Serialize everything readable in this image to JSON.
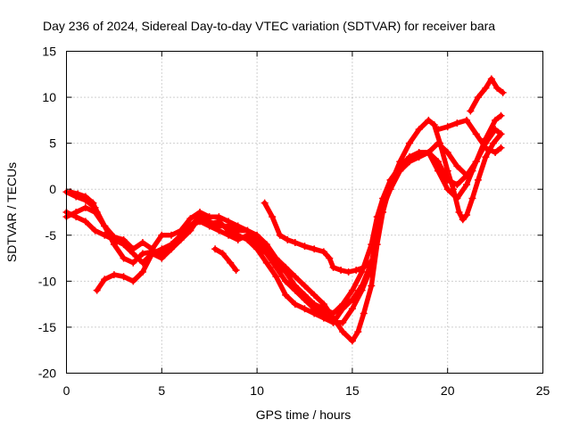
{
  "chart_data": {
    "type": "scatter",
    "title": "Day 236 of 2024, Sidereal Day-to-day VTEC variation (SDTVAR) for receiver bara",
    "xlabel": "GPS time / hours",
    "ylabel": "SDTVAR / TECUs",
    "xlim": [
      0,
      25
    ],
    "ylim": [
      -20,
      15
    ],
    "xticks": [
      0,
      5,
      10,
      15,
      20,
      25
    ],
    "yticks": [
      -20,
      -15,
      -10,
      -5,
      0,
      5,
      10,
      15
    ],
    "xtick_labels": [
      "0",
      "5",
      "10",
      "15",
      "20",
      "25"
    ],
    "ytick_labels": [
      "-20",
      "-15",
      "-10",
      "-5",
      "0",
      "5",
      "10",
      "15"
    ],
    "grid": true,
    "marker": "plus",
    "color": "#ff0000",
    "series": [
      {
        "name": "track-1",
        "points": [
          [
            0.0,
            -0.3
          ],
          [
            0.5,
            -0.8
          ],
          [
            1.0,
            -1.2
          ],
          [
            1.5,
            -2.0
          ],
          [
            2.0,
            -4.0
          ],
          [
            2.5,
            -5.2
          ],
          [
            3.0,
            -5.5
          ],
          [
            3.5,
            -6.5
          ],
          [
            4.0,
            -5.8
          ],
          [
            4.5,
            -6.5
          ],
          [
            5.0,
            -5.0
          ],
          [
            5.5,
            -5.0
          ],
          [
            6.0,
            -4.5
          ],
          [
            6.5,
            -3.2
          ],
          [
            7.0,
            -2.5
          ],
          [
            7.5,
            -3.0
          ],
          [
            8.0,
            -3.0
          ],
          [
            8.5,
            -3.5
          ],
          [
            9.0,
            -4.0
          ],
          [
            9.5,
            -4.5
          ],
          [
            10.0,
            -5.0
          ],
          [
            10.5,
            -6.0
          ],
          [
            11.0,
            -7.5
          ],
          [
            11.5,
            -8.5
          ],
          [
            12.0,
            -9.5
          ],
          [
            12.5,
            -10.5
          ],
          [
            13.0,
            -11.5
          ],
          [
            13.5,
            -12.5
          ],
          [
            14.0,
            -14.0
          ],
          [
            14.5,
            -15.5
          ],
          [
            15.0,
            -16.5
          ],
          [
            15.3,
            -15.5
          ],
          [
            15.6,
            -13.5
          ],
          [
            16.0,
            -10.5
          ],
          [
            16.3,
            -6.0
          ],
          [
            16.6,
            -2.5
          ],
          [
            17.0,
            0.5
          ],
          [
            17.5,
            3.0
          ],
          [
            18.0,
            5.0
          ],
          [
            18.5,
            6.5
          ],
          [
            19.0,
            7.5
          ],
          [
            19.3,
            7.0
          ],
          [
            19.6,
            5.0
          ],
          [
            20.0,
            2.0
          ],
          [
            20.3,
            0.0
          ],
          [
            20.6,
            -2.5
          ],
          [
            20.8,
            -3.3
          ],
          [
            21.0,
            -2.8
          ],
          [
            21.3,
            -1.0
          ],
          [
            21.6,
            1.0
          ],
          [
            22.0,
            3.5
          ],
          [
            22.4,
            5.0
          ],
          [
            22.8,
            6.0
          ]
        ]
      },
      {
        "name": "track-2",
        "points": [
          [
            0.0,
            -2.5
          ],
          [
            0.5,
            -3.0
          ],
          [
            1.0,
            -3.5
          ],
          [
            1.5,
            -4.5
          ],
          [
            2.0,
            -5.0
          ],
          [
            2.5,
            -5.5
          ],
          [
            3.0,
            -6.0
          ],
          [
            3.5,
            -7.0
          ],
          [
            4.0,
            -8.0
          ],
          [
            4.5,
            -7.0
          ],
          [
            5.0,
            -6.5
          ],
          [
            5.5,
            -6.0
          ],
          [
            6.0,
            -5.0
          ],
          [
            6.5,
            -4.0
          ],
          [
            7.0,
            -3.5
          ],
          [
            7.5,
            -4.0
          ],
          [
            8.0,
            -4.5
          ],
          [
            8.5,
            -5.0
          ],
          [
            9.0,
            -5.5
          ],
          [
            9.5,
            -5.0
          ],
          [
            10.0,
            -6.0
          ],
          [
            10.5,
            -7.0
          ],
          [
            11.0,
            -8.5
          ],
          [
            11.5,
            -10.0
          ],
          [
            12.0,
            -11.0
          ],
          [
            12.5,
            -12.0
          ],
          [
            13.0,
            -13.0
          ],
          [
            13.5,
            -13.5
          ],
          [
            14.0,
            -14.5
          ],
          [
            14.5,
            -14.5
          ],
          [
            15.0,
            -13.0
          ],
          [
            15.5,
            -11.0
          ],
          [
            16.0,
            -8.5
          ],
          [
            16.3,
            -4.5
          ],
          [
            16.6,
            -1.5
          ],
          [
            17.0,
            1.0
          ],
          [
            17.5,
            2.5
          ],
          [
            18.0,
            3.5
          ],
          [
            18.5,
            4.0
          ],
          [
            19.0,
            4.0
          ],
          [
            19.5,
            2.0
          ],
          [
            20.0,
            0.0
          ],
          [
            20.5,
            -1.0
          ],
          [
            21.0,
            0.5
          ],
          [
            21.5,
            3.0
          ],
          [
            22.0,
            5.5
          ],
          [
            22.5,
            7.5
          ],
          [
            22.8,
            8.0
          ]
        ]
      },
      {
        "name": "track-3",
        "points": [
          [
            0.0,
            -3.0
          ],
          [
            0.5,
            -2.5
          ],
          [
            1.0,
            -2.0
          ],
          [
            1.5,
            -2.5
          ],
          [
            2.0,
            -4.0
          ],
          [
            2.5,
            -6.0
          ],
          [
            3.0,
            -7.5
          ],
          [
            3.5,
            -8.0
          ],
          [
            4.0,
            -7.0
          ],
          [
            4.5,
            -6.8
          ],
          [
            5.0,
            -7.0
          ],
          [
            5.5,
            -6.5
          ],
          [
            6.0,
            -5.5
          ],
          [
            6.5,
            -4.5
          ],
          [
            7.0,
            -3.0
          ],
          [
            7.5,
            -3.5
          ],
          [
            8.0,
            -4.0
          ],
          [
            8.5,
            -4.0
          ],
          [
            9.0,
            -4.5
          ],
          [
            9.5,
            -4.5
          ],
          [
            10.0,
            -5.5
          ],
          [
            10.5,
            -6.5
          ],
          [
            11.0,
            -8.0
          ],
          [
            11.5,
            -9.0
          ],
          [
            12.0,
            -10.5
          ],
          [
            12.5,
            -11.5
          ],
          [
            13.0,
            -12.5
          ],
          [
            13.5,
            -13.0
          ],
          [
            14.0,
            -13.5
          ],
          [
            14.5,
            -12.5
          ],
          [
            15.0,
            -11.0
          ],
          [
            15.5,
            -9.0
          ],
          [
            16.0,
            -6.0
          ],
          [
            16.3,
            -3.0
          ],
          [
            16.6,
            -1.0
          ],
          [
            17.0,
            1.0
          ],
          [
            17.5,
            2.0
          ],
          [
            18.0,
            3.0
          ],
          [
            18.5,
            3.5
          ],
          [
            19.0,
            4.0
          ],
          [
            19.5,
            5.0
          ],
          [
            20.0,
            4.0
          ],
          [
            20.5,
            2.5
          ],
          [
            21.0,
            1.5
          ],
          [
            21.5,
            3.0
          ],
          [
            22.0,
            5.0
          ],
          [
            22.5,
            6.5
          ],
          [
            22.8,
            6.0
          ]
        ]
      },
      {
        "name": "track-4",
        "points": [
          [
            1.6,
            -11.0
          ],
          [
            2.0,
            -9.8
          ],
          [
            2.5,
            -9.3
          ],
          [
            3.0,
            -9.5
          ],
          [
            3.5,
            -10.0
          ],
          [
            4.0,
            -9.0
          ],
          [
            4.5,
            -7.0
          ],
          [
            5.0,
            -7.5
          ],
          [
            5.5,
            -6.5
          ],
          [
            6.0,
            -5.0
          ],
          [
            6.5,
            -4.0
          ],
          [
            7.0,
            -3.0
          ],
          [
            7.5,
            -3.8
          ],
          [
            8.0,
            -3.5
          ],
          [
            8.5,
            -4.5
          ],
          [
            9.0,
            -5.0
          ],
          [
            9.5,
            -5.5
          ],
          [
            10.0,
            -6.5
          ],
          [
            10.5,
            -8.0
          ],
          [
            11.0,
            -9.5
          ],
          [
            11.5,
            -11.5
          ],
          [
            12.0,
            -12.5
          ],
          [
            12.5,
            -13.0
          ],
          [
            13.0,
            -13.5
          ],
          [
            13.5,
            -14.0
          ],
          [
            14.0,
            -14.5
          ],
          [
            14.5,
            -13.0
          ],
          [
            15.0,
            -12.0
          ],
          [
            15.5,
            -10.5
          ],
          [
            16.0,
            -8.0
          ],
          [
            16.3,
            -5.0
          ],
          [
            16.6,
            -2.0
          ],
          [
            17.0,
            0.0
          ],
          [
            17.5,
            2.0
          ],
          [
            18.0,
            3.5
          ],
          [
            18.5,
            4.0
          ],
          [
            19.0,
            4.0
          ],
          [
            19.5,
            3.0
          ],
          [
            20.0,
            1.0
          ],
          [
            20.5,
            0.5
          ],
          [
            21.0,
            1.5
          ],
          [
            21.3,
            2.0
          ]
        ]
      },
      {
        "name": "track-5",
        "points": [
          [
            10.4,
            -1.5
          ],
          [
            10.8,
            -3.0
          ],
          [
            11.2,
            -5.0
          ],
          [
            11.6,
            -5.5
          ],
          [
            12.0,
            -5.8
          ],
          [
            12.5,
            -6.2
          ],
          [
            13.0,
            -6.5
          ],
          [
            13.5,
            -6.8
          ],
          [
            13.8,
            -7.5
          ],
          [
            14.0,
            -8.5
          ],
          [
            14.4,
            -8.8
          ],
          [
            14.8,
            -9.0
          ],
          [
            15.2,
            -8.8
          ],
          [
            15.6,
            -8.5
          ],
          [
            15.9,
            -8.0
          ]
        ]
      },
      {
        "name": "track-6",
        "points": [
          [
            19.5,
            6.5
          ],
          [
            20.0,
            6.8
          ],
          [
            20.5,
            7.2
          ],
          [
            21.0,
            7.5
          ],
          [
            21.5,
            6.0
          ],
          [
            22.0,
            4.5
          ],
          [
            22.5,
            4.0
          ],
          [
            22.8,
            4.5
          ]
        ]
      },
      {
        "name": "track-7",
        "points": [
          [
            21.2,
            8.5
          ],
          [
            21.6,
            10.0
          ],
          [
            22.0,
            11.0
          ],
          [
            22.3,
            12.0
          ],
          [
            22.6,
            11.0
          ],
          [
            22.9,
            10.5
          ]
        ]
      },
      {
        "name": "track-8",
        "points": [
          [
            7.8,
            -6.5
          ],
          [
            8.2,
            -7.0
          ],
          [
            8.6,
            -8.0
          ],
          [
            8.9,
            -8.8
          ]
        ]
      },
      {
        "name": "track-9",
        "points": [
          [
            0.2,
            -0.3
          ],
          [
            0.6,
            -0.5
          ],
          [
            1.0,
            -0.8
          ],
          [
            1.4,
            -1.5
          ],
          [
            1.6,
            -2.5
          ]
        ]
      }
    ]
  }
}
